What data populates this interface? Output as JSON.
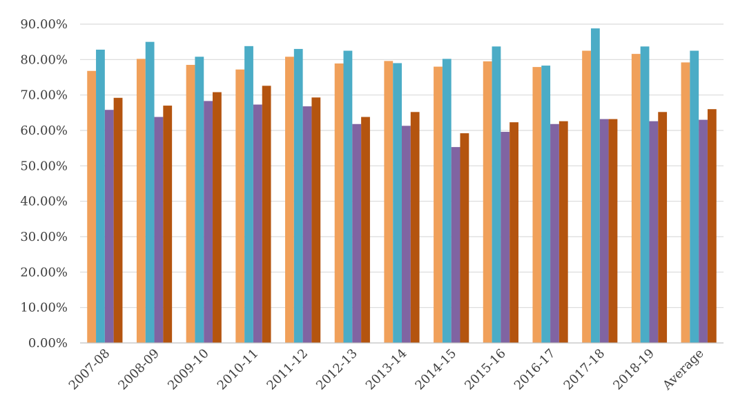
{
  "chart_data": {
    "type": "bar",
    "categories": [
      "2007-08",
      "2008-09",
      "2009-10",
      "2010-11",
      "2011-12",
      "2012-13",
      "2013-14",
      "2014-15",
      "2015-16",
      "2016-17",
      "2017-18",
      "2018-19",
      "Average"
    ],
    "series": [
      {
        "color": "#F0A05A",
        "values": [
          76.8,
          80.2,
          78.5,
          77.2,
          80.8,
          78.9,
          79.6,
          78.0,
          79.5,
          77.9,
          82.5,
          81.6,
          79.2
        ]
      },
      {
        "color": "#4BACC6",
        "values": [
          82.8,
          85.0,
          80.8,
          83.8,
          83.0,
          82.5,
          79.0,
          80.2,
          83.7,
          78.3,
          88.8,
          83.7,
          82.5
        ]
      },
      {
        "color": "#8064A2",
        "values": [
          65.8,
          63.8,
          68.3,
          67.3,
          66.8,
          61.8,
          61.3,
          55.3,
          59.6,
          61.8,
          63.2,
          62.6,
          63.0
        ]
      },
      {
        "color": "#B4540F",
        "values": [
          69.2,
          67.0,
          70.8,
          72.6,
          69.3,
          63.8,
          65.2,
          59.2,
          62.3,
          62.6,
          63.2,
          65.2,
          66.0
        ]
      }
    ],
    "ylim": [
      0,
      90
    ],
    "yticks": [
      0,
      10,
      20,
      30,
      40,
      50,
      60,
      70,
      80,
      90
    ],
    "ytick_labels": [
      "0.00%",
      "10.00%",
      "20.00%",
      "30.00%",
      "40.00%",
      "50.00%",
      "60.00%",
      "70.00%",
      "80.00%",
      "90.00%"
    ],
    "grid": true,
    "gridline_color": "#D9D9D9",
    "axis_color": "#BFBFBF"
  }
}
